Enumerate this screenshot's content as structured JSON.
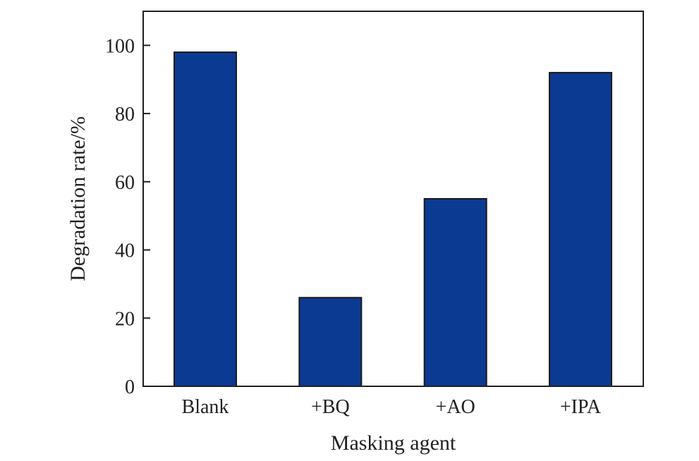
{
  "chart_data": {
    "type": "bar",
    "categories": [
      "Blank",
      "+BQ",
      "+AO",
      "+IPA"
    ],
    "values": [
      98,
      26,
      55,
      92
    ],
    "title": "",
    "xlabel": "Masking agent",
    "ylabel": "Degradation rate/%",
    "ylim": [
      0,
      110
    ],
    "yticks": [
      0,
      20,
      40,
      60,
      80,
      100
    ],
    "grid": false,
    "bar_color": "#0b3a93"
  }
}
